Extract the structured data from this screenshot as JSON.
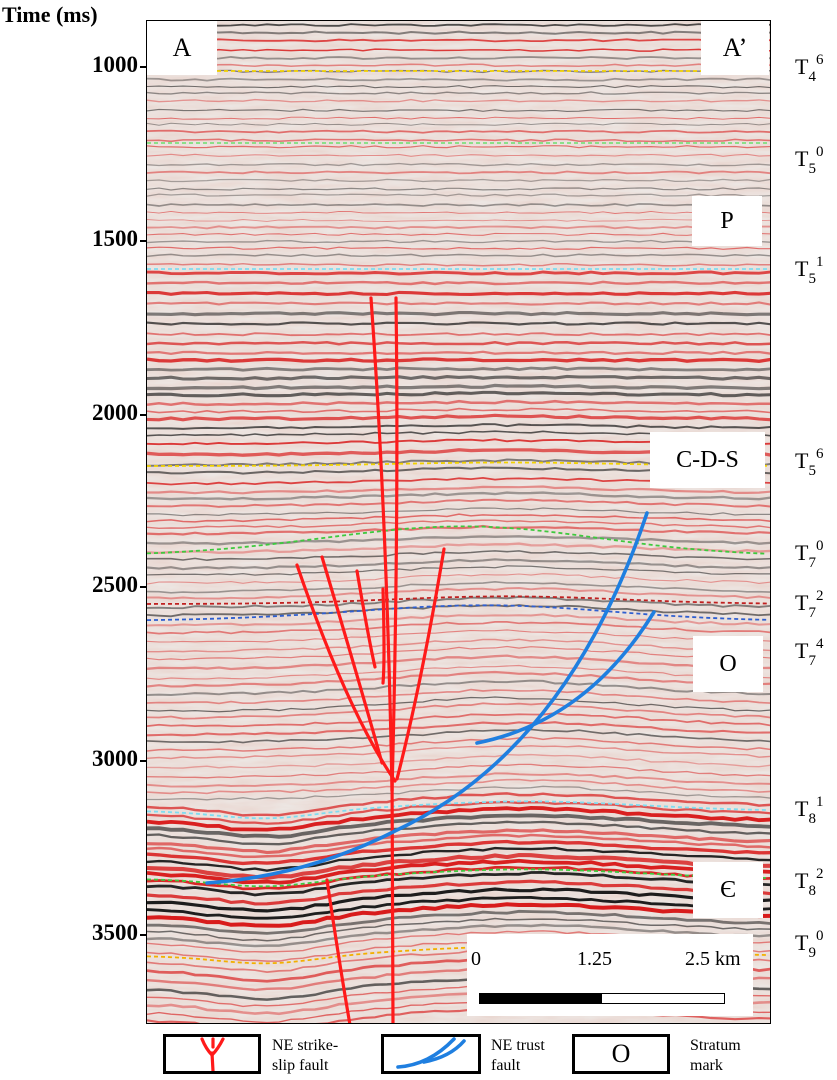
{
  "axis": {
    "title": "Time (ms)",
    "ticks": [
      "1000",
      "1500",
      "2000",
      "2500",
      "3000",
      "3500"
    ]
  },
  "section": {
    "start_label": "A",
    "end_label": "A’"
  },
  "strata": {
    "p": "P",
    "cds": "C-D-S",
    "o": "O",
    "cambrian": "Є"
  },
  "horizons": [
    {
      "base": "T",
      "sub": "4",
      "sup": "6",
      "color": "#f2d200"
    },
    {
      "base": "T",
      "sub": "5",
      "sup": "0",
      "color": "#7ee07e"
    },
    {
      "base": "T",
      "sub": "5",
      "sup": "1",
      "color": "#7fdcf0"
    },
    {
      "base": "T",
      "sub": "5",
      "sup": "6",
      "color": "#f2d200"
    },
    {
      "base": "T",
      "sub": "7",
      "sup": "0",
      "color": "#3ec93e"
    },
    {
      "base": "T",
      "sub": "7",
      "sup": "2",
      "color": "#c02020"
    },
    {
      "base": "T",
      "sub": "7",
      "sup": "4",
      "color": "#2f5fd0"
    },
    {
      "base": "T",
      "sub": "8",
      "sup": "1",
      "color": "#7fdcf0"
    },
    {
      "base": "T",
      "sub": "8",
      "sup": "2",
      "color": "#3ec93e"
    },
    {
      "base": "T",
      "sub": "9",
      "sup": "0",
      "color": "#f2b000"
    }
  ],
  "scale_bar": {
    "labels": [
      "0",
      "1.25",
      "2.5 km"
    ]
  },
  "legend": {
    "strike_slip": "NE strike-slip fault",
    "strike_slip_line1": "NE strike-",
    "strike_slip_line2": "slip fault",
    "thrust_line1": "NE trust",
    "thrust_line2": "fault",
    "stratum_symbol": "O",
    "stratum_line1": "Stratum",
    "stratum_line2": "mark"
  },
  "colors": {
    "strike_slip_fault": "#ff1a1a",
    "thrust_fault": "#1f7fe0",
    "reflector_red": "#d81c1c",
    "reflector_black": "#1a1a1a"
  }
}
